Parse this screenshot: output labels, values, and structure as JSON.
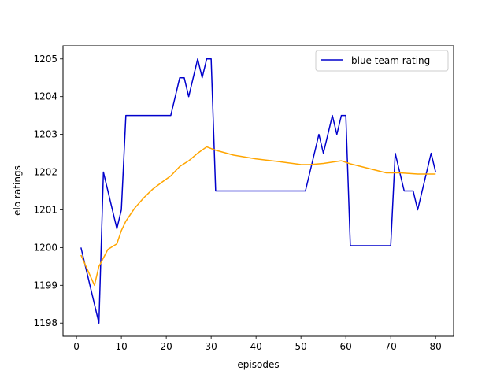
{
  "chart_data": {
    "type": "line",
    "xlabel": "episodes",
    "ylabel": "elo ratings",
    "xlim": [
      -3,
      84
    ],
    "ylim": [
      1197.65,
      1205.35
    ],
    "xticks": [
      0,
      10,
      20,
      30,
      40,
      50,
      60,
      70,
      80
    ],
    "yticks": [
      1198,
      1199,
      1200,
      1201,
      1202,
      1203,
      1204,
      1205
    ],
    "grid": false,
    "legend": {
      "position": "upper right",
      "entries": [
        "blue team rating"
      ]
    },
    "series": [
      {
        "name": "blue team rating",
        "color": "#0000cc",
        "points": [
          [
            1,
            1200.0
          ],
          [
            5,
            1198.0
          ],
          [
            6,
            1202.0
          ],
          [
            9,
            1200.5
          ],
          [
            10,
            1201.0
          ],
          [
            11,
            1203.5
          ],
          [
            21,
            1203.5
          ],
          [
            23,
            1204.5
          ],
          [
            24,
            1204.5
          ],
          [
            25,
            1204.0
          ],
          [
            27,
            1205.0
          ],
          [
            28,
            1204.5
          ],
          [
            29,
            1205.0
          ],
          [
            30,
            1205.0
          ],
          [
            31,
            1201.5
          ],
          [
            51,
            1201.5
          ],
          [
            54,
            1203.0
          ],
          [
            55,
            1202.5
          ],
          [
            57,
            1203.5
          ],
          [
            58,
            1203.0
          ],
          [
            59,
            1203.5
          ],
          [
            60,
            1203.5
          ],
          [
            61,
            1200.05
          ],
          [
            70,
            1200.05
          ],
          [
            71,
            1202.5
          ],
          [
            73,
            1201.5
          ],
          [
            75,
            1201.5
          ],
          [
            76,
            1201.0
          ],
          [
            79,
            1202.5
          ],
          [
            80,
            1202.0
          ]
        ]
      },
      {
        "color": "#ffa500",
        "points": [
          [
            1,
            1199.8
          ],
          [
            4,
            1199.0
          ],
          [
            5,
            1199.5
          ],
          [
            7,
            1199.95
          ],
          [
            9,
            1200.1
          ],
          [
            10,
            1200.45
          ],
          [
            11,
            1200.7
          ],
          [
            13,
            1201.05
          ],
          [
            15,
            1201.32
          ],
          [
            17,
            1201.55
          ],
          [
            19,
            1201.73
          ],
          [
            21,
            1201.9
          ],
          [
            23,
            1202.15
          ],
          [
            25,
            1202.3
          ],
          [
            27,
            1202.5
          ],
          [
            29,
            1202.67
          ],
          [
            31,
            1202.58
          ],
          [
            35,
            1202.45
          ],
          [
            40,
            1202.35
          ],
          [
            45,
            1202.28
          ],
          [
            50,
            1202.2
          ],
          [
            52,
            1202.2
          ],
          [
            55,
            1202.23
          ],
          [
            59,
            1202.3
          ],
          [
            61,
            1202.22
          ],
          [
            65,
            1202.1
          ],
          [
            69,
            1201.98
          ],
          [
            72,
            1201.98
          ],
          [
            76,
            1201.95
          ],
          [
            80,
            1201.95
          ]
        ]
      }
    ]
  }
}
